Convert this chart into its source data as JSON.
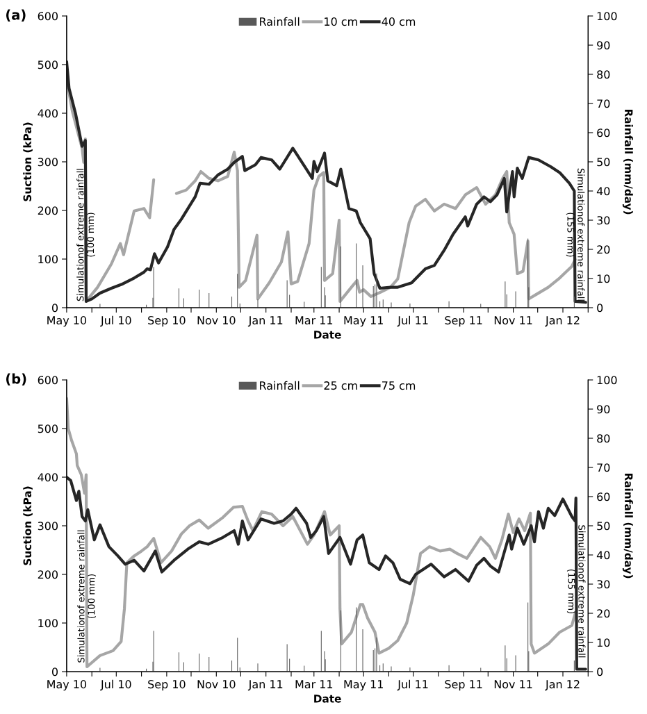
{
  "chart_data": [
    {
      "type": "line",
      "title": "(a)",
      "xlabel": "Date",
      "ylabel": "Suction (kPa)",
      "y2label": "Rainfall (mm/day)",
      "xlim": [
        "2010-05-01",
        "2012-02-01"
      ],
      "xticks": [
        {
          "value": "2010-05-01",
          "label": "May 10"
        },
        {
          "value": "2010-06-01",
          "label": null
        },
        {
          "value": "2010-07-01",
          "label": "Jul 10"
        },
        {
          "value": "2010-08-01",
          "label": null
        },
        {
          "value": "2010-09-01",
          "label": "Sep 10"
        },
        {
          "value": "2010-10-01",
          "label": null
        },
        {
          "value": "2010-11-01",
          "label": "Nov 10"
        },
        {
          "value": "2010-12-01",
          "label": null
        },
        {
          "value": "2011-01-01",
          "label": "Jan 11"
        },
        {
          "value": "2011-02-01",
          "label": null
        },
        {
          "value": "2011-03-01",
          "label": "Mar 11"
        },
        {
          "value": "2011-04-01",
          "label": null
        },
        {
          "value": "2011-05-01",
          "label": "May 11"
        },
        {
          "value": "2011-06-01",
          "label": null
        },
        {
          "value": "2011-07-01",
          "label": "Jul 11"
        },
        {
          "value": "2011-08-01",
          "label": null
        },
        {
          "value": "2011-09-01",
          "label": "Sep 11"
        },
        {
          "value": "2011-10-01",
          "label": null
        },
        {
          "value": "2011-11-01",
          "label": "Nov 11"
        },
        {
          "value": "2011-12-01",
          "label": null
        },
        {
          "value": "2012-01-01",
          "label": "Jan 12"
        },
        {
          "value": "2012-02-01",
          "label": null
        }
      ],
      "ylim": [
        0,
        600
      ],
      "yticks": [
        0,
        100,
        200,
        300,
        400,
        500,
        600
      ],
      "y2lim": [
        0,
        100
      ],
      "y2ticks": [
        0,
        10,
        20,
        30,
        40,
        50,
        60,
        70,
        80,
        90,
        100
      ],
      "legend": "top",
      "grid": false,
      "annotations": [
        {
          "text": "Simulationof extreme rainfall\n(100 mm)",
          "x": "2010-05-25",
          "y": 150
        },
        {
          "text": "Simulationof extreme rainfall\n(155 mm)",
          "x": "2012-01-16",
          "y": 150
        }
      ],
      "series": [
        {
          "name": "Rainfall",
          "type": "bar",
          "axis": "y2",
          "color": "#595959",
          "x": [
            "2010-06-11",
            "2010-08-07",
            "2010-08-15",
            "2010-08-16",
            "2010-09-16",
            "2010-09-22",
            "2010-10-11",
            "2010-10-23",
            "2010-11-20",
            "2010-11-27",
            "2010-11-30",
            "2010-12-22",
            "2011-01-27",
            "2011-01-30",
            "2011-02-17",
            "2011-03-10",
            "2011-03-14",
            "2011-03-15",
            "2011-04-03",
            "2011-04-22",
            "2011-04-30",
            "2011-05-13",
            "2011-05-15",
            "2011-05-17",
            "2011-05-21",
            "2011-05-25",
            "2011-06-04",
            "2011-06-27",
            "2011-08-14",
            "2011-09-22",
            "2011-10-22",
            "2011-10-24",
            "2011-11-04",
            "2011-11-19",
            "2011-11-20",
            "2012-01-15"
          ],
          "values": [
            1.3,
            1,
            3.4,
            14,
            6.6,
            3.2,
            6.2,
            5,
            3.8,
            11.6,
            1.4,
            2.8,
            9.4,
            4.4,
            2,
            14,
            7,
            4.2,
            21,
            22,
            14.5,
            7.4,
            8,
            11.7,
            2.2,
            2.8,
            1.8,
            1.4,
            2.2,
            1.3,
            9,
            4.6,
            5.6,
            23.7,
            7,
            3.8
          ]
        },
        {
          "name": "10 cm",
          "color": "#a6a6a6",
          "x": [
            "2010-05-01",
            "2010-05-04",
            "2010-05-08",
            "2010-05-20",
            "2010-05-22",
            "2010-05-24",
            "2010-05-25",
            "2010-06-08",
            "2010-06-25",
            "2010-07-06",
            "2010-07-10",
            "2010-07-23",
            "2010-08-04",
            "2010-08-11",
            "2010-08-16",
            "2010-08-30",
            "2010-09-13",
            "2010-09-25",
            "2010-10-06",
            "2010-10-13",
            "2010-10-23",
            "2010-11-03",
            "2010-11-15",
            "2010-11-23",
            "2010-11-27",
            "2010-11-29",
            "2010-12-07",
            "2010-12-21",
            "2010-12-22",
            "2011-01-05",
            "2011-01-20",
            "2011-01-28",
            "2011-02-01",
            "2011-02-09",
            "2011-02-23",
            "2011-03-01",
            "2011-03-07",
            "2011-03-13",
            "2011-03-14",
            "2011-03-24",
            "2011-04-01",
            "2011-04-02",
            "2011-04-16",
            "2011-04-23",
            "2011-04-26",
            "2011-05-01",
            "2011-05-10",
            "2011-05-22",
            "2011-06-03",
            "2011-06-12",
            "2011-06-18",
            "2011-06-26",
            "2011-07-04",
            "2011-07-16",
            "2011-07-27",
            "2011-08-08",
            "2011-08-22",
            "2011-09-03",
            "2011-09-17",
            "2011-09-28",
            "2011-10-10",
            "2011-10-19",
            "2011-10-24",
            "2011-10-27",
            "2011-11-02",
            "2011-11-06",
            "2011-11-13",
            "2011-11-19",
            "2011-11-20",
            "2011-11-30",
            "2011-12-14",
            "2011-12-28",
            "2012-01-12",
            "2012-01-16"
          ],
          "values": [
            480,
            442,
            404,
            328,
            299,
            347,
            13,
            42,
            90,
            132,
            109,
            199,
            204,
            185,
            263,
            null,
            235,
            242,
            261,
            280,
            266,
            261,
            270,
            320,
            282,
            42,
            56,
            149,
            18,
            51,
            94,
            156,
            49,
            54,
            132,
            242,
            270,
            278,
            56,
            70,
            180,
            13,
            42,
            56,
            32,
            37,
            23,
            32,
            42,
            59,
            109,
            175,
            209,
            223,
            199,
            213,
            204,
            232,
            247,
            213,
            232,
            266,
            280,
            175,
            151,
            70,
            75,
            137,
            18,
            28,
            42,
            61,
            85,
            99
          ]
        },
        {
          "name": "40 cm",
          "color": "#262626",
          "x": [
            "2010-05-01",
            "2010-05-04",
            "2010-05-12",
            "2010-05-20",
            "2010-05-24",
            "2010-05-25",
            "2010-06-01",
            "2010-06-11",
            "2010-06-25",
            "2010-07-09",
            "2010-07-23",
            "2010-08-04",
            "2010-08-08",
            "2010-08-12",
            "2010-08-17",
            "2010-08-22",
            "2010-09-02",
            "2010-09-10",
            "2010-09-19",
            "2010-09-29",
            "2010-10-06",
            "2010-10-12",
            "2010-10-23",
            "2010-11-03",
            "2010-11-15",
            "2010-11-23",
            "2010-12-03",
            "2010-12-06",
            "2010-12-19",
            "2010-12-26",
            "2011-01-08",
            "2011-01-18",
            "2011-02-03",
            "2011-02-17",
            "2011-02-27",
            "2011-03-01",
            "2011-03-05",
            "2011-03-14",
            "2011-03-18",
            "2011-03-29",
            "2011-04-03",
            "2011-04-13",
            "2011-04-22",
            "2011-04-27",
            "2011-05-09",
            "2011-05-14",
            "2011-05-21",
            "2011-06-03",
            "2011-06-12",
            "2011-06-29",
            "2011-07-16",
            "2011-07-27",
            "2011-08-08",
            "2011-08-19",
            "2011-09-03",
            "2011-09-06",
            "2011-09-17",
            "2011-09-26",
            "2011-10-04",
            "2011-10-12",
            "2011-10-21",
            "2011-10-24",
            "2011-10-31",
            "2011-11-02",
            "2011-11-06",
            "2011-11-12",
            "2011-11-20",
            "2011-12-02",
            "2011-12-17",
            "2011-12-28",
            "2012-01-09",
            "2012-01-15",
            "2012-01-16",
            "2012-01-29"
          ],
          "values": [
            506,
            451,
            399,
            332,
            344,
            13,
            18,
            30,
            40,
            49,
            61,
            73,
            80,
            78,
            111,
            92,
            125,
            161,
            182,
            209,
            228,
            256,
            254,
            273,
            285,
            299,
            311,
            282,
            294,
            309,
            304,
            285,
            328,
            292,
            266,
            301,
            280,
            318,
            261,
            251,
            285,
            204,
            199,
            175,
            142,
            70,
            40,
            42,
            42,
            51,
            80,
            87,
            118,
            151,
            187,
            168,
            213,
            228,
            218,
            232,
            266,
            197,
            280,
            228,
            287,
            266,
            309,
            304,
            290,
            278,
            256,
            240,
            13,
            11
          ]
        }
      ]
    },
    {
      "type": "line",
      "title": "(b)",
      "xlabel": "Date",
      "ylabel": "Suction (kPa)",
      "y2label": "Rainfall (mm/day)",
      "xlim": [
        "2010-05-01",
        "2012-02-01"
      ],
      "xticks": [
        {
          "value": "2010-05-01",
          "label": "May 10"
        },
        {
          "value": "2010-06-01",
          "label": null
        },
        {
          "value": "2010-07-01",
          "label": "Jul 10"
        },
        {
          "value": "2010-08-01",
          "label": null
        },
        {
          "value": "2010-09-01",
          "label": "Sep 10"
        },
        {
          "value": "2010-10-01",
          "label": null
        },
        {
          "value": "2010-11-01",
          "label": "Nov 10"
        },
        {
          "value": "2010-12-01",
          "label": null
        },
        {
          "value": "2011-01-01",
          "label": "Jan 11"
        },
        {
          "value": "2011-02-01",
          "label": null
        },
        {
          "value": "2011-03-01",
          "label": "Mar 11"
        },
        {
          "value": "2011-04-01",
          "label": null
        },
        {
          "value": "2011-05-01",
          "label": "May 11"
        },
        {
          "value": "2011-06-01",
          "label": null
        },
        {
          "value": "2011-07-01",
          "label": "Jul 11"
        },
        {
          "value": "2011-08-01",
          "label": null
        },
        {
          "value": "2011-09-01",
          "label": "Sep 11"
        },
        {
          "value": "2011-10-01",
          "label": null
        },
        {
          "value": "2011-11-01",
          "label": "Nov 11"
        },
        {
          "value": "2011-12-01",
          "label": null
        },
        {
          "value": "2012-01-01",
          "label": "Jan 12"
        },
        {
          "value": "2012-02-01",
          "label": null
        }
      ],
      "ylim": [
        0,
        600
      ],
      "yticks": [
        0,
        100,
        200,
        300,
        400,
        500,
        600
      ],
      "y2lim": [
        0,
        100
      ],
      "y2ticks": [
        0,
        10,
        20,
        30,
        40,
        50,
        60,
        70,
        80,
        90,
        100
      ],
      "legend": "top",
      "grid": false,
      "annotations": [
        {
          "text": "Simulationof extreme rainfall\n(100 mm)",
          "x": "2010-05-26",
          "y": 155
        },
        {
          "text": "Simulationof extreme rainfall\n(155 mm)",
          "x": "2012-01-17",
          "y": 165
        }
      ],
      "series": [
        {
          "name": "Rainfall",
          "type": "bar",
          "axis": "y2",
          "color": "#595959",
          "x": [
            "2010-06-11",
            "2010-08-07",
            "2010-08-15",
            "2010-08-16",
            "2010-09-16",
            "2010-09-22",
            "2010-10-11",
            "2010-10-23",
            "2010-11-20",
            "2010-11-27",
            "2010-11-30",
            "2010-12-22",
            "2011-01-27",
            "2011-01-30",
            "2011-02-17",
            "2011-03-10",
            "2011-03-14",
            "2011-03-15",
            "2011-04-03",
            "2011-04-22",
            "2011-04-30",
            "2011-05-13",
            "2011-05-15",
            "2011-05-17",
            "2011-05-21",
            "2011-05-25",
            "2011-06-04",
            "2011-06-27",
            "2011-08-14",
            "2011-09-22",
            "2011-10-22",
            "2011-10-24",
            "2011-11-04",
            "2011-11-19",
            "2011-11-20",
            "2012-01-15"
          ],
          "values": [
            1.3,
            1,
            3.4,
            14,
            6.6,
            3.2,
            6.2,
            5,
            3.8,
            11.6,
            1.4,
            2.8,
            9.4,
            4.4,
            2,
            14,
            7,
            4.2,
            21,
            22,
            14.5,
            7.4,
            8,
            11.7,
            2.2,
            2.8,
            1.8,
            1.4,
            2.2,
            1.3,
            9,
            4.6,
            5.6,
            23.7,
            7,
            3.8
          ]
        },
        {
          "name": "25 cm",
          "color": "#a6a6a6",
          "x": [
            "2010-05-01",
            "2010-05-03",
            "2010-05-07",
            "2010-05-13",
            "2010-05-14",
            "2010-05-19",
            "2010-05-23",
            "2010-05-25",
            "2010-05-26",
            "2010-06-11",
            "2010-06-27",
            "2010-07-07",
            "2010-07-11",
            "2010-07-14",
            "2010-07-23",
            "2010-08-01",
            "2010-08-08",
            "2010-08-16",
            "2010-08-25",
            "2010-09-07",
            "2010-09-19",
            "2010-09-29",
            "2010-10-11",
            "2010-10-22",
            "2010-11-09",
            "2010-11-22",
            "2010-12-03",
            "2010-12-10",
            "2010-12-16",
            "2010-12-27",
            "2011-01-08",
            "2011-01-22",
            "2011-02-03",
            "2011-02-21",
            "2011-03-01",
            "2011-03-14",
            "2011-03-21",
            "2011-04-01",
            "2011-04-02",
            "2011-04-04",
            "2011-04-16",
            "2011-04-27",
            "2011-04-30",
            "2011-05-06",
            "2011-05-15",
            "2011-05-20",
            "2011-06-01",
            "2011-06-12",
            "2011-06-23",
            "2011-07-01",
            "2011-07-10",
            "2011-07-21",
            "2011-08-03",
            "2011-08-15",
            "2011-08-24",
            "2011-09-05",
            "2011-09-22",
            "2011-10-03",
            "2011-10-10",
            "2011-10-18",
            "2011-10-26",
            "2011-11-01",
            "2011-11-08",
            "2011-11-15",
            "2011-11-22",
            "2011-11-23",
            "2011-11-27",
            "2011-12-14",
            "2011-12-28",
            "2012-01-12",
            "2012-01-16"
          ],
          "values": [
            562,
            500,
            476,
            448,
            424,
            405,
            367,
            405,
            10,
            33,
            43,
            62,
            129,
            224,
            238,
            248,
            257,
            274,
            224,
            248,
            283,
            300,
            312,
            295,
            317,
            338,
            340,
            310,
            290,
            329,
            324,
            300,
            319,
            262,
            281,
            329,
            281,
            300,
            129,
            57,
            81,
            138,
            138,
            110,
            81,
            38,
            48,
            64,
            100,
            157,
            243,
            257,
            248,
            252,
            243,
            233,
            276,
            257,
            233,
            271,
            324,
            286,
            314,
            290,
            326,
            57,
            38,
            57,
            81,
            95,
            119
          ]
        },
        {
          "name": "75 cm",
          "color": "#262626",
          "x": [
            "2010-05-01",
            "2010-05-06",
            "2010-05-13",
            "2010-05-16",
            "2010-05-20",
            "2010-05-24",
            "2010-05-27",
            "2010-06-04",
            "2010-06-11",
            "2010-06-22",
            "2010-07-03",
            "2010-07-12",
            "2010-07-23",
            "2010-08-04",
            "2010-08-18",
            "2010-08-26",
            "2010-09-10",
            "2010-09-27",
            "2010-10-11",
            "2010-10-22",
            "2010-11-09",
            "2010-11-23",
            "2010-11-28",
            "2010-12-03",
            "2010-12-10",
            "2010-12-26",
            "2011-01-11",
            "2011-01-22",
            "2011-02-01",
            "2011-02-07",
            "2011-02-20",
            "2011-02-25",
            "2011-03-04",
            "2011-03-13",
            "2011-03-19",
            "2011-04-02",
            "2011-04-15",
            "2011-04-23",
            "2011-04-30",
            "2011-05-08",
            "2011-05-20",
            "2011-05-28",
            "2011-06-06",
            "2011-06-15",
            "2011-06-27",
            "2011-07-04",
            "2011-07-23",
            "2011-08-08",
            "2011-08-22",
            "2011-09-07",
            "2011-09-17",
            "2011-09-26",
            "2011-10-04",
            "2011-10-14",
            "2011-10-27",
            "2011-10-30",
            "2011-11-06",
            "2011-11-14",
            "2011-11-23",
            "2011-11-27",
            "2011-12-02",
            "2011-12-08",
            "2011-12-14",
            "2011-12-22",
            "2012-01-01",
            "2012-01-12",
            "2012-01-16",
            "2012-01-17",
            "2012-01-18",
            "2012-01-29"
          ],
          "values": [
            400,
            393,
            352,
            371,
            319,
            310,
            333,
            271,
            302,
            257,
            238,
            221,
            229,
            207,
            248,
            205,
            229,
            252,
            267,
            262,
            276,
            290,
            262,
            310,
            271,
            314,
            305,
            310,
            324,
            336,
            305,
            276,
            290,
            319,
            243,
            276,
            221,
            271,
            281,
            224,
            210,
            238,
            224,
            190,
            181,
            200,
            221,
            195,
            210,
            186,
            219,
            233,
            217,
            205,
            281,
            252,
            295,
            262,
            300,
            267,
            329,
            295,
            336,
            321,
            355,
            319,
            310,
            357,
            5,
            5
          ]
        }
      ]
    }
  ]
}
